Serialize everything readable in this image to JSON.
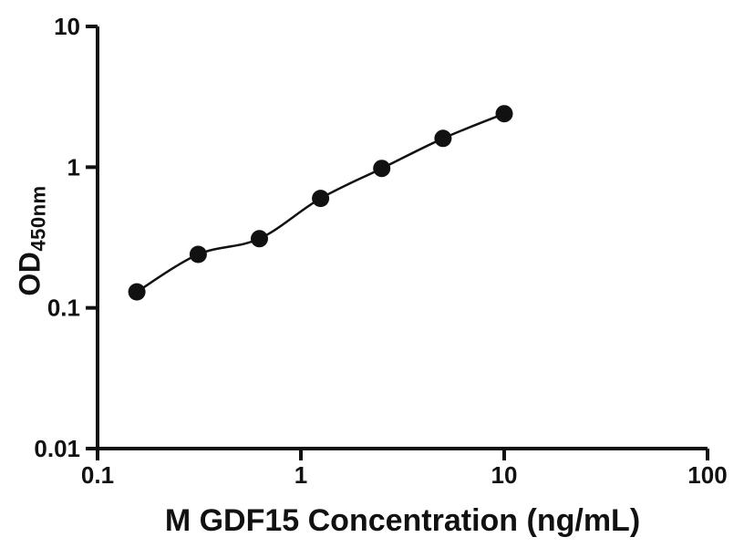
{
  "figure": {
    "xlabel": "M GDF15 Concentration (ng/mL)",
    "ylabel_main": "OD",
    "ylabel_sub": "450nm"
  },
  "chart_data": {
    "type": "scatter",
    "title": "",
    "xlabel": "M GDF15 Concentration (ng/mL)",
    "ylabel": "OD450nm",
    "xscale": "log",
    "yscale": "log",
    "xlim": [
      0.1,
      100
    ],
    "ylim": [
      0.01,
      10
    ],
    "x": [
      0.156,
      0.3125,
      0.625,
      1.25,
      2.5,
      5,
      10
    ],
    "y": [
      0.13,
      0.24,
      0.31,
      0.6,
      0.98,
      1.6,
      2.4
    ],
    "fit": "smooth sigmoidal (4PL-style) curve through points",
    "x_ticks": {
      "values": [
        0.1,
        1,
        10,
        100
      ],
      "labels": [
        "0.1",
        "1",
        "10",
        "100"
      ]
    },
    "y_ticks": {
      "values": [
        0.01,
        0.1,
        1,
        10
      ],
      "labels": [
        "0.01",
        "0.1",
        "1",
        "10"
      ]
    },
    "marker": {
      "shape": "circle",
      "color": "#111111",
      "radius": 9.5
    },
    "line": {
      "color": "#111111",
      "width": 2.5
    },
    "axis_color": "#111111",
    "grid": false,
    "legend": false
  }
}
